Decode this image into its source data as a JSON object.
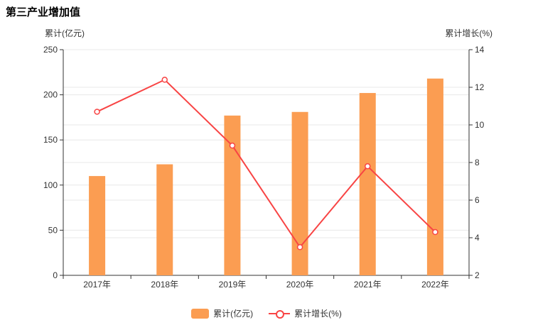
{
  "page": {
    "title": "第三产业增加值"
  },
  "axes": {
    "left_name": "累计(亿元)",
    "right_name": "累计增长(%)"
  },
  "legend": {
    "bar_label": "累计(亿元)",
    "line_label": "累计增长(%)"
  },
  "colors": {
    "bar": "#fb9d52",
    "line": "#f84444",
    "axis": "#333333",
    "grid": "#e8e8e8",
    "text": "#333333",
    "background": "#ffffff"
  },
  "chart_data": {
    "type": "bar+line combo",
    "title": "第三产业增加值",
    "categories": [
      "2017年",
      "2018年",
      "2019年",
      "2020年",
      "2021年",
      "2022年"
    ],
    "series": [
      {
        "name": "累计(亿元)",
        "type": "bar",
        "axis": "left",
        "values": [
          110,
          123,
          177,
          181,
          202,
          218
        ]
      },
      {
        "name": "累计增长(%)",
        "type": "line",
        "axis": "right",
        "values": [
          10.7,
          12.4,
          8.9,
          3.5,
          7.8,
          4.3
        ]
      }
    ],
    "left_axis": {
      "name": "累计(亿元)",
      "min": 0,
      "max": 250,
      "step": 50
    },
    "right_axis": {
      "name": "累计增长(%)",
      "min": 2,
      "max": 14,
      "step": 2
    },
    "grid": true,
    "legend_position": "bottom-center"
  }
}
